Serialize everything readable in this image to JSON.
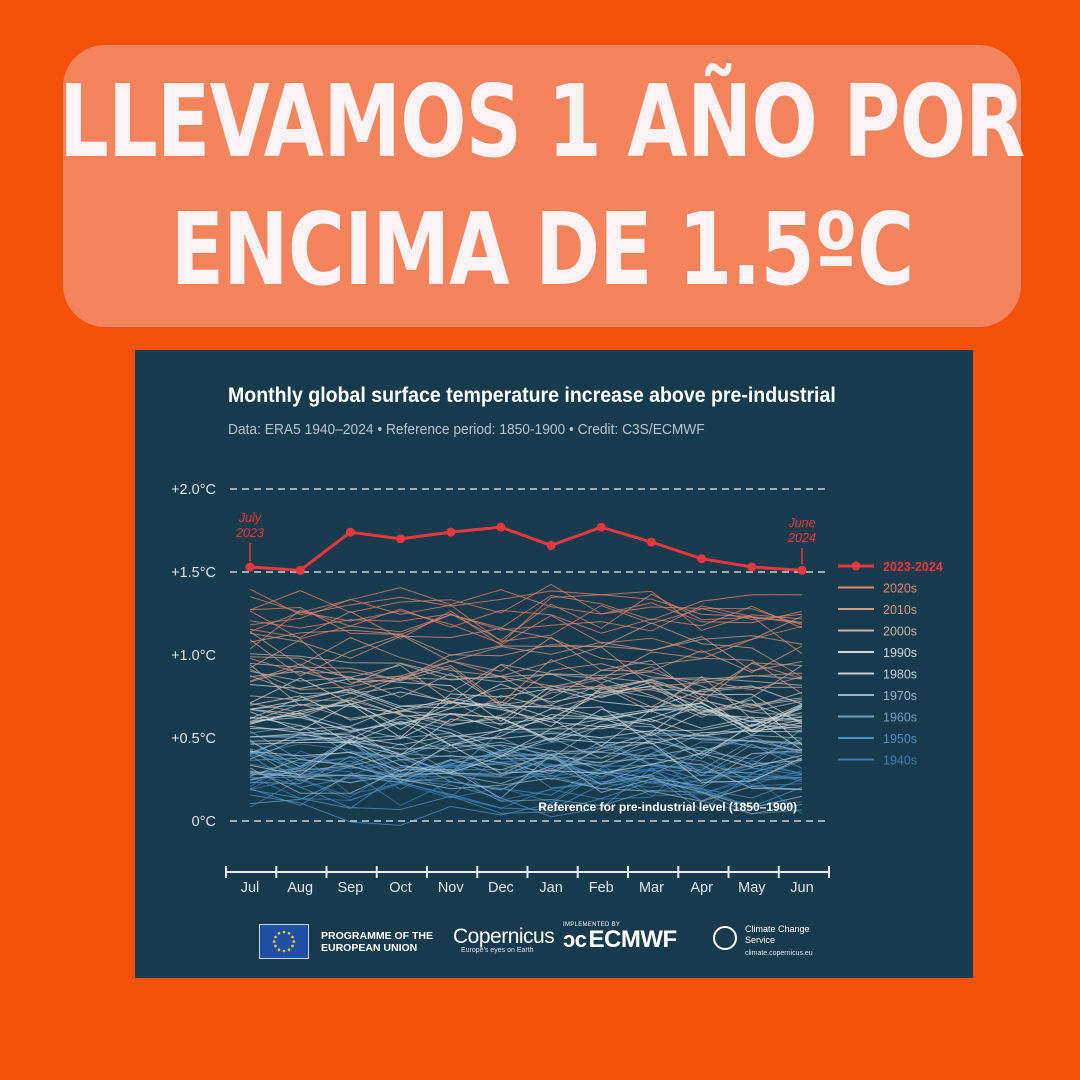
{
  "headline": {
    "line1": "LLEVAMOS 1 AÑO POR",
    "line2": "ENCIMA DE 1.5ºC"
  },
  "chart_data": {
    "type": "line",
    "title": "Monthly global surface temperature increase above pre-industrial",
    "subtitle": "Data: ERA5 1940–2024 • Reference period: 1850-1900 • Credit: C3S/ECMWF",
    "categories": [
      "Jul",
      "Aug",
      "Sep",
      "Oct",
      "Nov",
      "Dec",
      "Jan",
      "Feb",
      "Mar",
      "Apr",
      "May",
      "Jun"
    ],
    "y_ticks": [
      {
        "value": 0,
        "label": "0°C"
      },
      {
        "value": 0.5,
        "label": "+0.5°C"
      },
      {
        "value": 1.0,
        "label": "+1.0°C"
      },
      {
        "value": 1.5,
        "label": "+1.5°C"
      },
      {
        "value": 2.0,
        "label": "+2.0°C"
      }
    ],
    "ylim": [
      -0.25,
      2.1
    ],
    "dashed_reference_levels": [
      0,
      1.5,
      2.0
    ],
    "grid": false,
    "legend_position": "right",
    "highlight_series": {
      "name": "2023-2024",
      "color": "#e8383f",
      "values": [
        1.53,
        1.51,
        1.74,
        1.7,
        1.74,
        1.77,
        1.66,
        1.77,
        1.68,
        1.58,
        1.53,
        1.51
      ]
    },
    "annotations": {
      "start": "July\n2023",
      "end": "June\n2024",
      "reference": "Reference for pre-industrial level (1850–1900)"
    },
    "decades": [
      {
        "name": "2020s",
        "color": "#e2866f",
        "level": 1.22
      },
      {
        "name": "2010s",
        "color": "#d49a88",
        "level": 0.98
      },
      {
        "name": "2000s",
        "color": "#c7b3ab",
        "level": 0.8
      },
      {
        "name": "1990s",
        "color": "#d4d8da",
        "level": 0.62
      },
      {
        "name": "1980s",
        "color": "#c2d0d8",
        "level": 0.5
      },
      {
        "name": "1970s",
        "color": "#98b6c9",
        "level": 0.36
      },
      {
        "name": "1960s",
        "color": "#6f9fc1",
        "level": 0.3
      },
      {
        "name": "1950s",
        "color": "#4f8fbf",
        "level": 0.26
      },
      {
        "name": "1940s",
        "color": "#3f7cb0",
        "level": 0.3
      }
    ]
  },
  "footer": {
    "eu_line1": "PROGRAMME OF THE",
    "eu_line2": "EUROPEAN UNION",
    "copernicus": "Copernicus",
    "copernicus_tag": "Europe's eyes on Earth",
    "ecmwf_impl": "IMPLEMENTED BY",
    "ecmwf": "ECMWF",
    "c3s_name": "Climate Change Service",
    "c3s_url": "climate.copernicus.eu"
  }
}
